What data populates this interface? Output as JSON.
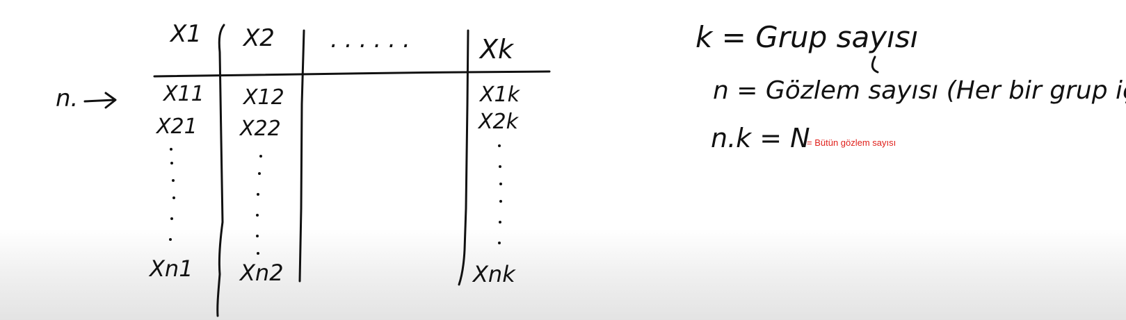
{
  "table": {
    "headers": [
      "X1",
      "X2",
      "......",
      "Xk"
    ],
    "rows": [
      [
        "X11",
        "X12",
        "X1k"
      ],
      [
        "X21",
        "X22",
        "X2k"
      ],
      [
        "Xn1",
        "Xn2",
        "Xnk"
      ]
    ]
  },
  "row_label": "n.",
  "definitions": {
    "k_line": "k = Grup sayısı",
    "n_line": "n = Gözlem sayısı (Her bir grup için)",
    "nk_line": "n.k = N",
    "note": "= Bütün gözlem sayısı"
  },
  "colors": {
    "ink": "#111111",
    "note": "#e0201b"
  }
}
